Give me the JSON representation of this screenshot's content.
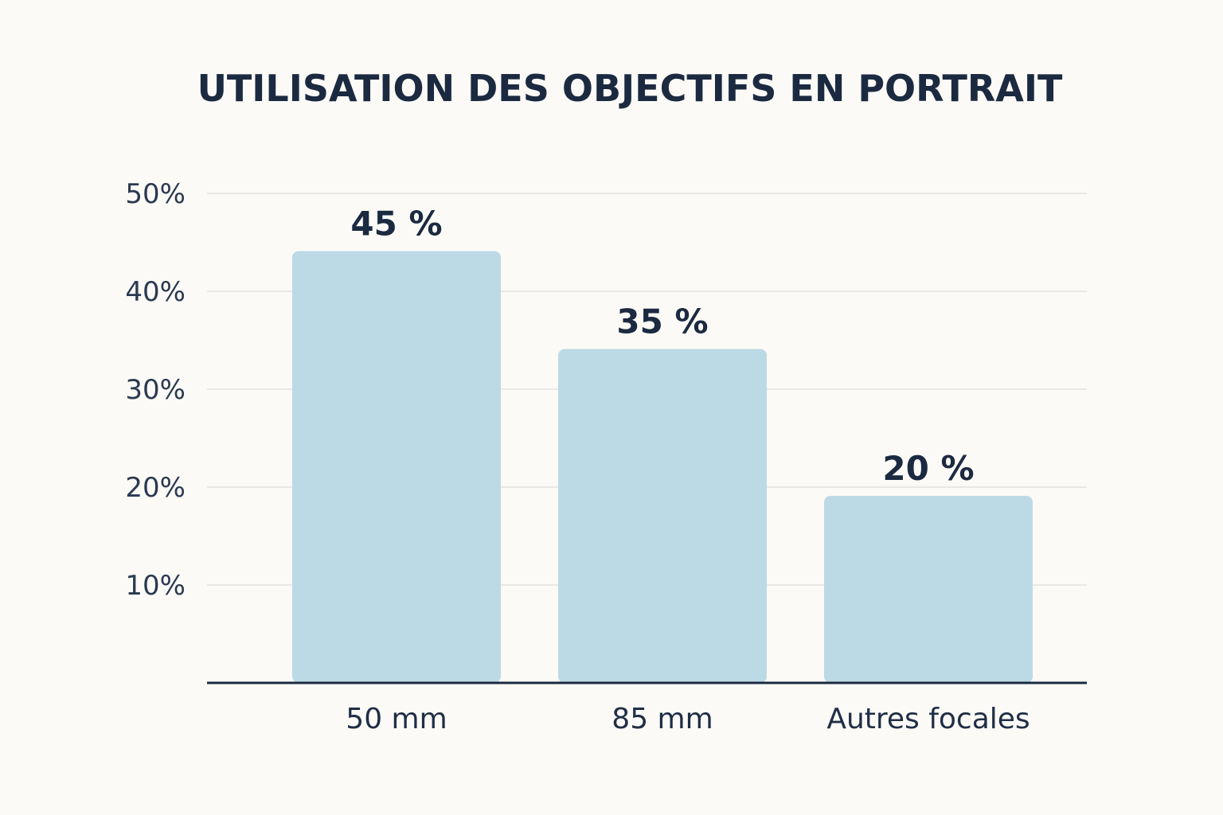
{
  "chart_data": {
    "type": "bar",
    "title": "UTILISATION DES OBJECTIFS EN PORTRAIT",
    "categories": [
      "50 mm",
      "85 mm",
      "Autres focales"
    ],
    "values": [
      45,
      35,
      20
    ],
    "value_labels": [
      "45 %",
      "35 %",
      "20 %"
    ],
    "xlabel": "",
    "ylabel": "",
    "ylim": [
      0,
      50
    ],
    "y_ticks": [
      10,
      20,
      30,
      40,
      50
    ],
    "y_tick_labels": [
      "10%",
      "20%",
      "30%",
      "40%",
      "50%"
    ],
    "grid": true,
    "legend": "none",
    "colors": {
      "bar": "#bcd9e6",
      "grid": "#e8e9e6",
      "axis": "#1b2a41",
      "text": "#1b2a41",
      "background": "#fcfaf6"
    }
  }
}
